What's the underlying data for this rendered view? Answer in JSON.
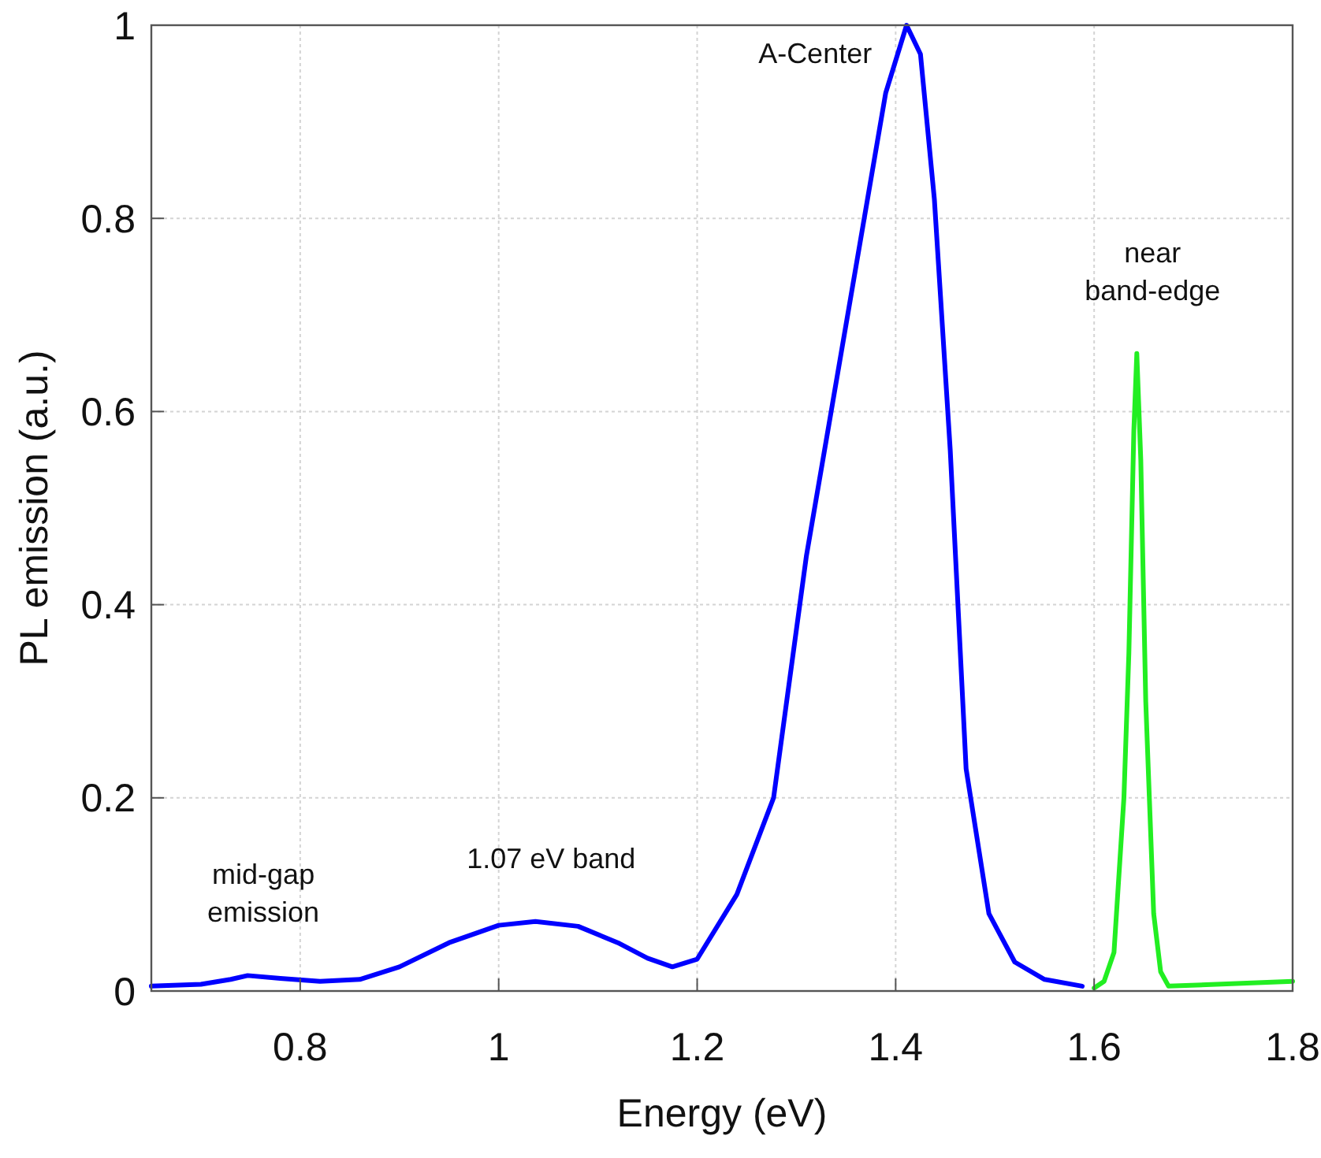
{
  "chart_data": {
    "type": "line",
    "xlabel": "Energy (eV)",
    "ylabel": "PL emission (a.u.)",
    "xlim": [
      0.65,
      1.8
    ],
    "xticks": [
      0.8,
      1,
      1.2,
      1.4,
      1.6,
      1.8
    ],
    "ylim": [
      0,
      1
    ],
    "yticks": [
      0,
      0.2,
      0.4,
      0.6,
      0.8,
      1
    ],
    "grid": true,
    "legend": false,
    "marker": "none",
    "line_style": "solid",
    "series": [
      {
        "color": "#0000ff",
        "x": [
          0.65,
          0.7,
          0.73,
          0.747,
          0.78,
          0.82,
          0.86,
          0.9,
          0.95,
          1.0,
          1.037,
          1.08,
          1.12,
          1.15,
          1.175,
          1.2,
          1.24,
          1.277,
          1.31,
          1.335,
          1.36,
          1.39,
          1.411,
          1.425,
          1.439,
          1.455,
          1.471,
          1.494,
          1.52,
          1.55,
          1.588
        ],
        "values": [
          0.005,
          0.007,
          0.012,
          0.016,
          0.013,
          0.01,
          0.012,
          0.025,
          0.05,
          0.068,
          0.072,
          0.067,
          0.05,
          0.034,
          0.025,
          0.033,
          0.1,
          0.2,
          0.45,
          0.6,
          0.75,
          0.93,
          1.0,
          0.97,
          0.82,
          0.56,
          0.23,
          0.08,
          0.03,
          0.012,
          0.005
        ]
      },
      {
        "color": "#22ee22",
        "x": [
          1.6,
          1.61,
          1.62,
          1.63,
          1.635,
          1.64,
          1.643,
          1.647,
          1.652,
          1.66,
          1.667,
          1.675,
          1.8
        ],
        "values": [
          0.003,
          0.01,
          0.04,
          0.2,
          0.35,
          0.58,
          0.66,
          0.55,
          0.3,
          0.08,
          0.02,
          0.005,
          0.01
        ]
      }
    ],
    "annotations": [
      {
        "text": "mid-gap\nemission",
        "x": 0.747,
        "y": 0.016
      },
      {
        "text": "1.07 eV band",
        "x": 1.037,
        "y": 0.072
      },
      {
        "text": "A-Center",
        "x": 1.411,
        "y": 1.0
      },
      {
        "text": "near\nband-edge",
        "x": 1.643,
        "y": 0.66
      }
    ]
  }
}
